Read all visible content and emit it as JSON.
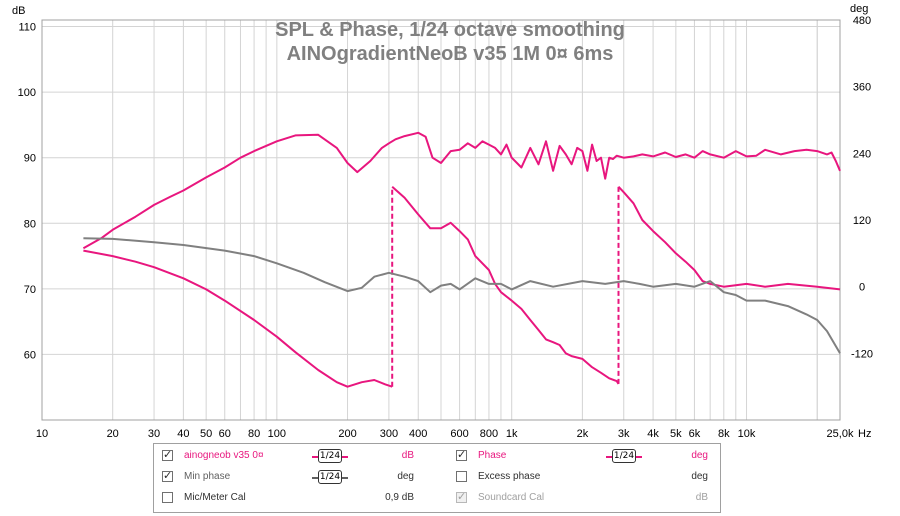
{
  "chart_data": {
    "type": "line",
    "title": "SPL & Phase, 1/24 octave smoothing",
    "subtitle": "AINOgradientNeoB v35 1M 0¤ 6ms",
    "xlabel": "Hz",
    "x_scale": "log",
    "xlim": [
      10,
      25000
    ],
    "x_tick_labels": [
      "10",
      "20",
      "30",
      "40",
      "50",
      "60",
      "80",
      "100",
      "200",
      "300",
      "400",
      "600",
      "800",
      "1k",
      "2k",
      "3k",
      "4k",
      "5k",
      "6k",
      "8k",
      "10k",
      "25,0k"
    ],
    "x_tick_values": [
      10,
      20,
      30,
      40,
      50,
      60,
      80,
      100,
      200,
      300,
      400,
      600,
      800,
      1000,
      2000,
      3000,
      4000,
      5000,
      6000,
      8000,
      10000,
      25000
    ],
    "ylabel_left": "dB",
    "ylim_left": [
      50,
      111
    ],
    "y_left_ticks": [
      60,
      70,
      80,
      90,
      100,
      110
    ],
    "ylabel_right": "deg",
    "ylim_right": [
      -240,
      480
    ],
    "y_right_ticks": [
      -120,
      0,
      120,
      240,
      360,
      480
    ],
    "grid": true,
    "series": [
      {
        "name": "ainogneob v35 0¤",
        "axis": "left",
        "color": "#e8167e",
        "x": [
          15,
          18,
          20,
          25,
          30,
          35,
          40,
          50,
          60,
          70,
          80,
          100,
          120,
          150,
          180,
          200,
          220,
          250,
          280,
          300,
          320,
          350,
          400,
          430,
          460,
          500,
          550,
          600,
          650,
          700,
          750,
          800,
          850,
          900,
          950,
          1000,
          1100,
          1200,
          1300,
          1400,
          1500,
          1600,
          1700,
          1800,
          1900,
          2000,
          2100,
          2200,
          2300,
          2400,
          2500,
          2600,
          2700,
          2800,
          3000,
          3300,
          3600,
          4000,
          4500,
          5000,
          5500,
          6000,
          6500,
          7000,
          8000,
          9000,
          10000,
          11000,
          12000,
          14000,
          16000,
          18000,
          20000,
          22000,
          23000,
          24000,
          25000
        ],
        "y": [
          76.2,
          77.8,
          79,
          81,
          82.8,
          84,
          85,
          87,
          88.5,
          90,
          91,
          92.5,
          93.4,
          93.5,
          91.5,
          89.2,
          87.8,
          89.5,
          91.5,
          92.2,
          92.8,
          93.3,
          93.8,
          93.2,
          90,
          89.2,
          91,
          91.2,
          92.2,
          91.5,
          92.5,
          92,
          91.5,
          90.5,
          92,
          90,
          88.5,
          91.5,
          89,
          92.5,
          88,
          91.8,
          90.5,
          89,
          91.5,
          91,
          88,
          92,
          89.5,
          90,
          86.8,
          90,
          89.8,
          90.3,
          90,
          90.2,
          90.5,
          90.2,
          90.8,
          90.1,
          90.5,
          90,
          91,
          90.5,
          90,
          91,
          90.2,
          90.3,
          91.2,
          90.5,
          91,
          91.2,
          91,
          90.5,
          90.8,
          89.5,
          88
        ]
      },
      {
        "name": "Phase",
        "axis": "right",
        "color": "#e8167e",
        "x": [
          15,
          20,
          25,
          30,
          40,
          50,
          60,
          80,
          100,
          120,
          150,
          180,
          200,
          230,
          260,
          290,
          310,
          310,
          350,
          400,
          450,
          500,
          550,
          600,
          650,
          700,
          800,
          850,
          900,
          1000,
          1100,
          1200,
          1300,
          1400,
          1500,
          1600,
          1700,
          1800,
          2000,
          2200,
          2400,
          2600,
          2800,
          2850,
          2850,
          3000,
          3300,
          3600,
          4000,
          4500,
          5000,
          5500,
          6000,
          6500,
          7000,
          8000,
          10000,
          12000,
          15000,
          20000,
          25000
        ],
        "y": [
          65,
          55,
          45,
          35,
          15,
          -5,
          -25,
          -60,
          -90,
          -118,
          -150,
          -172,
          -180,
          -172,
          -168,
          -176,
          -180,
          180,
          160,
          130,
          105,
          105,
          115,
          100,
          85,
          55,
          30,
          5,
          -10,
          -25,
          -40,
          -60,
          -78,
          -95,
          -100,
          -105,
          -120,
          -125,
          -130,
          -145,
          -155,
          -165,
          -170,
          -175,
          180,
          170,
          150,
          120,
          100,
          80,
          60,
          45,
          30,
          10,
          5,
          0,
          5,
          0,
          5,
          0,
          -5
        ]
      },
      {
        "name": "Min phase",
        "axis": "right",
        "color": "#808080",
        "x": [
          15,
          20,
          30,
          40,
          60,
          80,
          100,
          130,
          160,
          200,
          230,
          260,
          300,
          350,
          400,
          450,
          500,
          550,
          600,
          700,
          800,
          900,
          1000,
          1200,
          1500,
          2000,
          2500,
          3000,
          3500,
          4000,
          5000,
          6000,
          7000,
          8000,
          9000,
          10000,
          12000,
          15000,
          18000,
          20000,
          22000,
          25000
        ],
        "y": [
          87,
          86,
          80,
          75,
          65,
          55,
          42,
          25,
          8,
          -8,
          -2,
          18,
          25,
          18,
          10,
          -10,
          2,
          5,
          -5,
          15,
          5,
          5,
          -5,
          10,
          0,
          10,
          5,
          10,
          5,
          0,
          5,
          0,
          10,
          -10,
          -15,
          -25,
          -25,
          -35,
          -50,
          -60,
          -80,
          -120
        ]
      }
    ],
    "legend": {
      "rows": [
        [
          {
            "label": "ainogneob v35 0¤",
            "checked": true,
            "color": "#e8167e",
            "enabled": true,
            "smoothing": "1/24",
            "unit": "dB"
          },
          {
            "label": "Phase",
            "checked": true,
            "color": "#e8167e",
            "enabled": true,
            "smoothing": "1/24",
            "unit": "deg"
          }
        ],
        [
          {
            "label": "Min phase",
            "checked": true,
            "color": "#606060",
            "enabled": true,
            "smoothing": "1/24",
            "unit": "deg"
          },
          {
            "label": "Excess phase",
            "checked": false,
            "color": "#303030",
            "enabled": true,
            "smoothing": "",
            "unit": "deg"
          }
        ],
        [
          {
            "label": "Mic/Meter Cal",
            "checked": false,
            "color": "#303030",
            "enabled": true,
            "smoothing": "",
            "unit": "0,9 dB"
          },
          {
            "label": "Soundcard Cal",
            "checked": true,
            "color": "#a0a0a0",
            "enabled": false,
            "smoothing": "",
            "unit": "dB"
          }
        ]
      ]
    }
  }
}
